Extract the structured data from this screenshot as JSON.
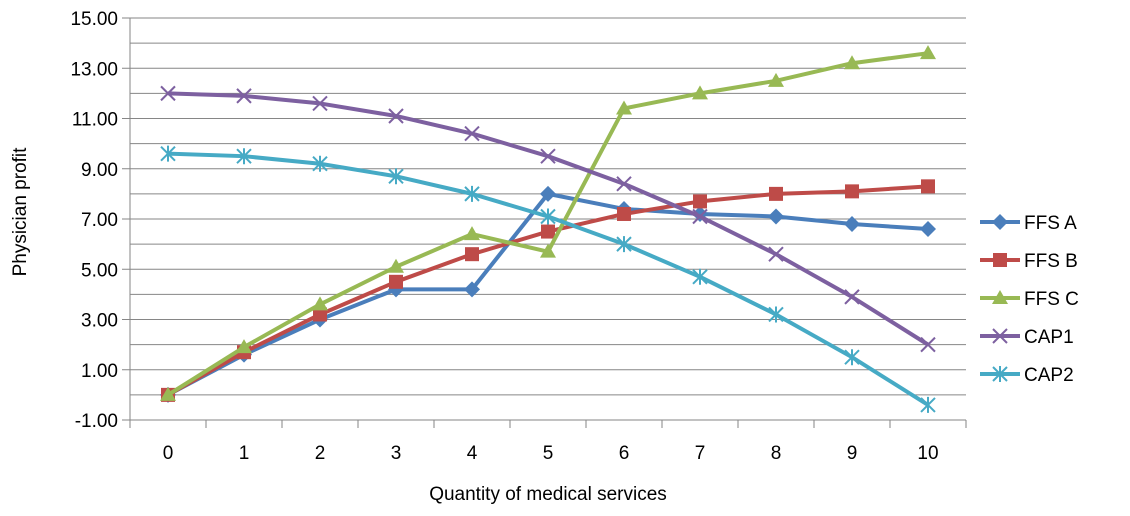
{
  "chart_data": {
    "type": "line",
    "title": "",
    "xlabel": "Quantity of medical services",
    "ylabel": "Physician profit",
    "x": [
      0,
      1,
      2,
      3,
      4,
      5,
      6,
      7,
      8,
      9,
      10
    ],
    "ylim": [
      -1.0,
      15.0
    ],
    "y_ticks": [
      "15.00",
      "13.00",
      "11.00",
      "9.00",
      "7.00",
      "5.00",
      "3.00",
      "1.00",
      "-1.00"
    ],
    "y_tick_values": [
      15,
      13,
      11,
      9,
      7,
      5,
      3,
      1,
      -1
    ],
    "y_minor_step": 1.0,
    "grid": true,
    "legend_position": "right",
    "series": [
      {
        "name": "FFS A",
        "color": "#4a7ebb",
        "marker": "diamond",
        "values": [
          0.0,
          1.6,
          3.0,
          4.2,
          4.2,
          8.0,
          7.4,
          7.2,
          7.1,
          6.8,
          6.6
        ]
      },
      {
        "name": "FFS B",
        "color": "#be4b48",
        "marker": "square",
        "values": [
          0.0,
          1.7,
          3.2,
          4.5,
          5.6,
          6.5,
          7.2,
          7.7,
          8.0,
          8.1,
          8.3
        ]
      },
      {
        "name": "FFS C",
        "color": "#98b954",
        "marker": "triangle",
        "values": [
          0.0,
          1.9,
          3.6,
          5.1,
          6.4,
          5.7,
          11.4,
          12.0,
          12.5,
          13.2,
          13.6
        ]
      },
      {
        "name": "CAP1",
        "color": "#7d60a0",
        "marker": "x",
        "values": [
          12.0,
          11.9,
          11.6,
          11.1,
          10.4,
          9.5,
          8.4,
          7.1,
          5.6,
          3.9,
          2.0
        ]
      },
      {
        "name": "CAP2",
        "color": "#46aac5",
        "marker": "star",
        "values": [
          9.6,
          9.5,
          9.2,
          8.7,
          8.0,
          7.1,
          6.0,
          4.7,
          3.2,
          1.5,
          -0.4
        ]
      }
    ]
  }
}
